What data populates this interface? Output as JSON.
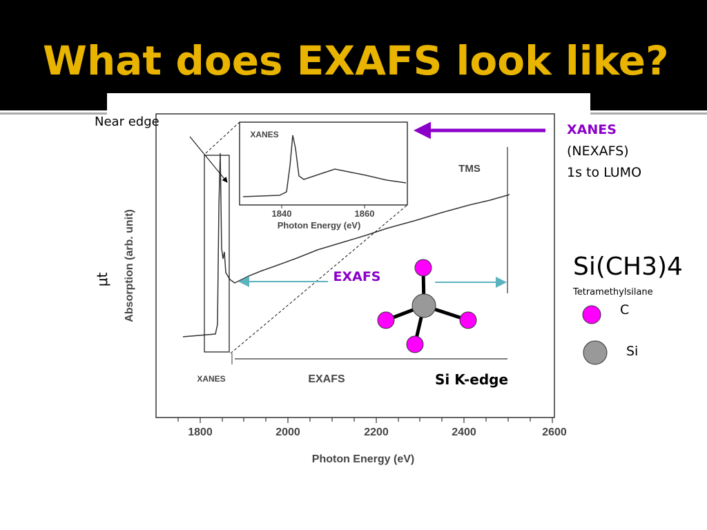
{
  "header": {
    "title": "What does EXAFS look like?"
  },
  "figure": {
    "annotations": {
      "near_edge": "Near edge",
      "mu_t": "μt",
      "exafs": "EXAFS",
      "si_k_edge": "Si K-edge"
    },
    "main_plot": {
      "y_label": "Absorption (arb. unit)",
      "x_label": "Photon Energy (eV)",
      "xticks": [
        "1800",
        "2000",
        "2200",
        "2400",
        "2600"
      ],
      "sample": "TMS",
      "region_labels": [
        "XANES",
        "EXAFS"
      ]
    },
    "inset": {
      "label": "XANES",
      "xticks": [
        "1840",
        "1860"
      ],
      "x_label": "Photon Energy (eV)"
    }
  },
  "sidebar": {
    "xanes": [
      "XANES",
      "(NEXAFS)",
      "1s to LUMO"
    ],
    "formula": "Si(CH3)4",
    "name": "Tetramethylsilane",
    "legend": [
      {
        "label": "C"
      },
      {
        "label": "Si"
      }
    ]
  }
}
